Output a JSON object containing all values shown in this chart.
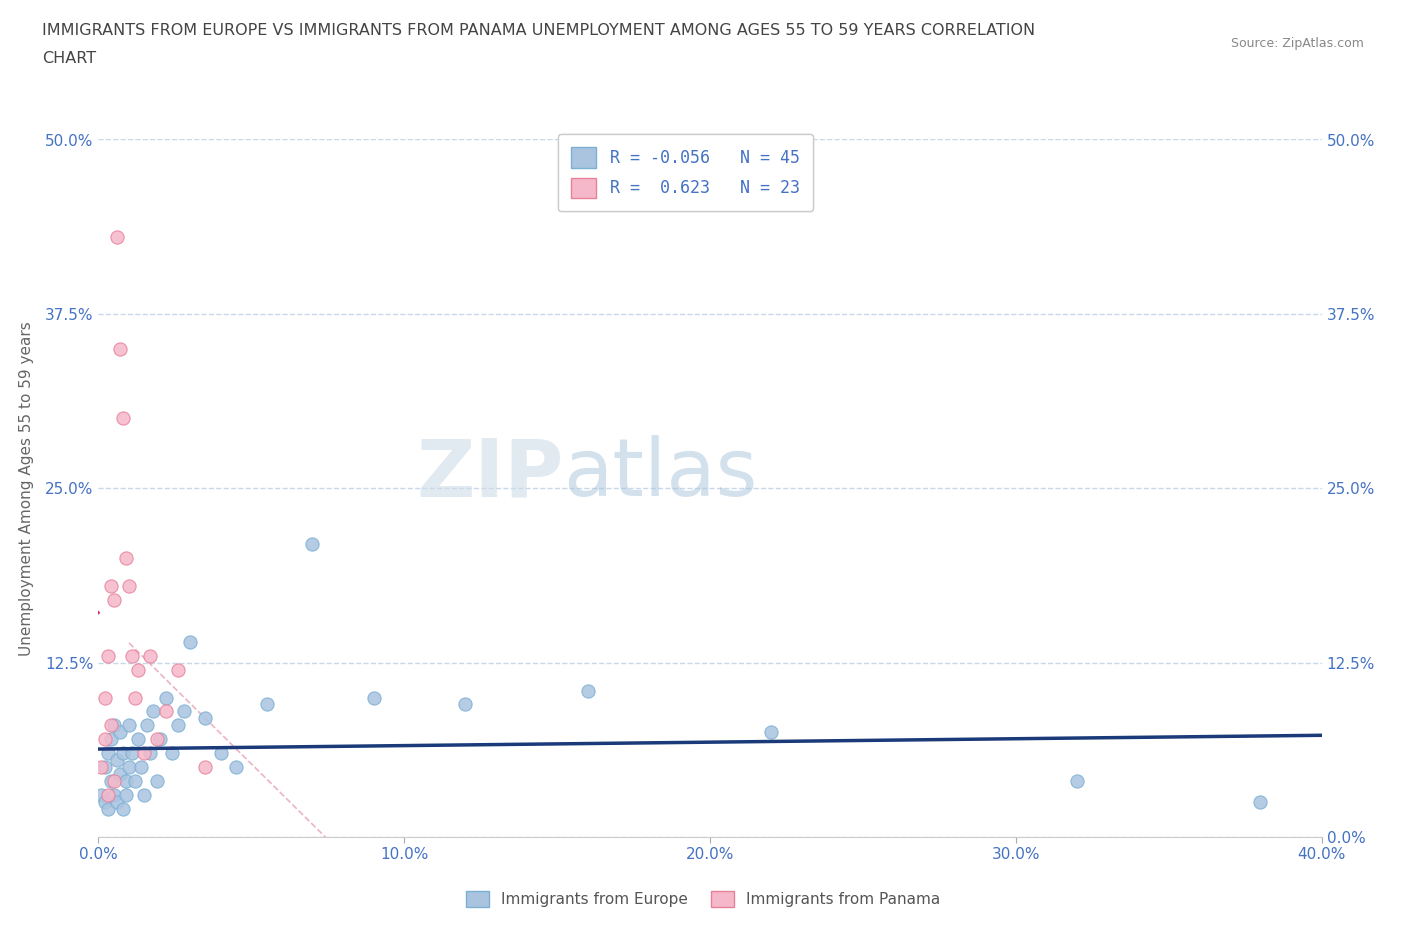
{
  "title_line1": "IMMIGRANTS FROM EUROPE VS IMMIGRANTS FROM PANAMA UNEMPLOYMENT AMONG AGES 55 TO 59 YEARS CORRELATION",
  "title_line2": "CHART",
  "source": "Source: ZipAtlas.com",
  "ylabel": "Unemployment Among Ages 55 to 59 years",
  "xlim": [
    0.0,
    0.4
  ],
  "ylim": [
    0.0,
    0.5
  ],
  "xticks": [
    0.0,
    0.1,
    0.2,
    0.3,
    0.4
  ],
  "yticks": [
    0.0,
    0.125,
    0.25,
    0.375,
    0.5
  ],
  "watermark_zip": "ZIP",
  "watermark_atlas": "atlas",
  "legend_r1": "R = -0.056",
  "legend_n1": "N = 45",
  "legend_r2": "R =  0.623",
  "legend_n2": "N = 23",
  "europe_color": "#aac4e0",
  "europe_edge": "#7bafd4",
  "panama_color": "#f5b8cb",
  "panama_edge": "#e8809a",
  "trend_europe_color": "#1a3a7a",
  "trend_panama_color": "#e03060",
  "ref_line_color": "#e8a0b4",
  "grid_color": "#c8d8ea",
  "title_color": "#444444",
  "axis_color": "#4472c4",
  "europe_x": [
    0.001,
    0.002,
    0.002,
    0.003,
    0.003,
    0.004,
    0.004,
    0.005,
    0.005,
    0.006,
    0.006,
    0.007,
    0.007,
    0.008,
    0.008,
    0.009,
    0.009,
    0.01,
    0.01,
    0.011,
    0.012,
    0.013,
    0.014,
    0.015,
    0.016,
    0.017,
    0.018,
    0.019,
    0.02,
    0.022,
    0.024,
    0.026,
    0.028,
    0.03,
    0.035,
    0.04,
    0.045,
    0.055,
    0.07,
    0.09,
    0.12,
    0.16,
    0.22,
    0.32,
    0.38
  ],
  "europe_y": [
    0.03,
    0.025,
    0.05,
    0.02,
    0.06,
    0.04,
    0.07,
    0.03,
    0.08,
    0.025,
    0.055,
    0.045,
    0.075,
    0.02,
    0.06,
    0.04,
    0.03,
    0.05,
    0.08,
    0.06,
    0.04,
    0.07,
    0.05,
    0.03,
    0.08,
    0.06,
    0.09,
    0.04,
    0.07,
    0.1,
    0.06,
    0.08,
    0.09,
    0.14,
    0.085,
    0.06,
    0.05,
    0.095,
    0.21,
    0.1,
    0.095,
    0.105,
    0.075,
    0.04,
    0.025
  ],
  "panama_x": [
    0.001,
    0.002,
    0.002,
    0.003,
    0.003,
    0.004,
    0.004,
    0.005,
    0.005,
    0.006,
    0.007,
    0.008,
    0.009,
    0.01,
    0.011,
    0.012,
    0.013,
    0.015,
    0.017,
    0.019,
    0.022,
    0.026,
    0.035
  ],
  "panama_y": [
    0.05,
    0.07,
    0.1,
    0.03,
    0.13,
    0.08,
    0.18,
    0.04,
    0.17,
    0.43,
    0.35,
    0.3,
    0.2,
    0.18,
    0.13,
    0.1,
    0.12,
    0.06,
    0.13,
    0.07,
    0.09,
    0.12,
    0.05
  ]
}
